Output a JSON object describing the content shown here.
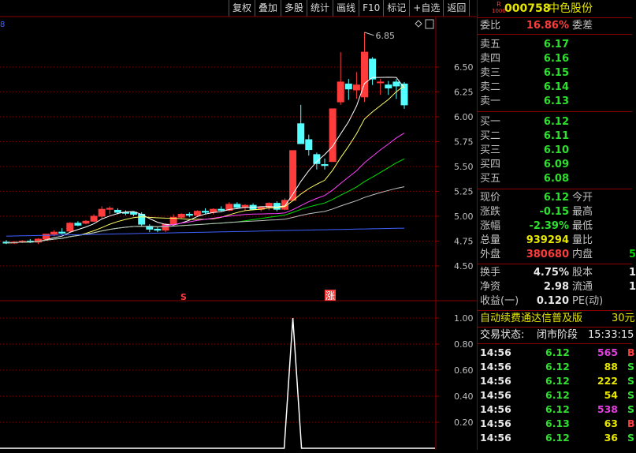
{
  "toolbar": {
    "buttons": [
      "复权",
      "叠加",
      "多股",
      "统计",
      "画线",
      "F10",
      "标记",
      "+自选",
      "返回"
    ]
  },
  "chart": {
    "price_axis": [
      "6.50",
      "6.25",
      "6.00",
      "5.75",
      "5.50",
      "5.25",
      "5.00",
      "4.75",
      "4.50"
    ],
    "high_label": "6.85",
    "indicator_axis": [
      "1.00",
      "0.80",
      "0.60",
      "0.40",
      "0.20"
    ],
    "marker_s": "S",
    "marker_zhang": "涨",
    "corner_mark": "8"
  },
  "stock": {
    "code_badge_top": "R",
    "code_badge_bottom": "1000",
    "code": "000758",
    "name": "中色股份"
  },
  "quote": {
    "weibi_label": "委比",
    "weibi_value": "16.86%",
    "weicha_label": "委差",
    "asks": [
      {
        "label": "卖五",
        "price": "6.17"
      },
      {
        "label": "卖四",
        "price": "6.16"
      },
      {
        "label": "卖三",
        "price": "6.15"
      },
      {
        "label": "卖二",
        "price": "6.14"
      },
      {
        "label": "卖一",
        "price": "6.13"
      }
    ],
    "bids": [
      {
        "label": "买一",
        "price": "6.12"
      },
      {
        "label": "买二",
        "price": "6.11"
      },
      {
        "label": "买三",
        "price": "6.10"
      },
      {
        "label": "买四",
        "price": "6.09"
      },
      {
        "label": "买五",
        "price": "6.08"
      }
    ],
    "stats1": [
      {
        "l1": "现价",
        "v1": "6.12",
        "l2": "今开",
        "v2": ""
      },
      {
        "l1": "涨跌",
        "v1": "-0.15",
        "l2": "最高",
        "v2": ""
      },
      {
        "l1": "涨幅",
        "v1": "-2.39%",
        "l2": "最低",
        "v2": ""
      },
      {
        "l1": "总量",
        "v1": "939294",
        "l2": "量比",
        "v2": ""
      },
      {
        "l1": "外盘",
        "v1": "380680",
        "l2": "内盘",
        "v2": "5"
      }
    ],
    "stats2": [
      {
        "l1": "换手",
        "v1": "4.75%",
        "l2": "股本",
        "v2": "1"
      },
      {
        "l1": "净资",
        "v1": "2.98",
        "l2": "流通",
        "v2": "1"
      },
      {
        "l1": "收益(一)",
        "v1": "0.120",
        "l2": "PE(动)",
        "v2": ""
      }
    ],
    "fee_text": "自动续费通达信普及版",
    "fee_price": "30元",
    "trade_status_label": "交易状态:",
    "trade_status": "闭市阶段",
    "trade_time": "15:33:15"
  },
  "ticks": [
    {
      "time": "14:56",
      "price": "6.12",
      "vol": "565",
      "flag": "B"
    },
    {
      "time": "14:56",
      "price": "6.12",
      "vol": "88",
      "flag": "S"
    },
    {
      "time": "14:56",
      "price": "6.12",
      "vol": "222",
      "flag": "S"
    },
    {
      "time": "14:56",
      "price": "6.12",
      "vol": "54",
      "flag": "S"
    },
    {
      "time": "14:56",
      "price": "6.12",
      "vol": "538",
      "flag": "S"
    },
    {
      "time": "14:56",
      "price": "6.13",
      "vol": "63",
      "flag": "B"
    },
    {
      "time": "14:56",
      "price": "6.12",
      "vol": "36",
      "flag": "S"
    }
  ],
  "colors": {
    "up": "#ff3c3c",
    "down": "#54ffff",
    "ma5": "#ffffff",
    "ma10": "#ffff66",
    "ma20": "#ff40ff",
    "ma30": "#00e000",
    "ma60": "#c0c0c0",
    "ma120": "#4060ff",
    "grid": "#8b0000"
  }
}
